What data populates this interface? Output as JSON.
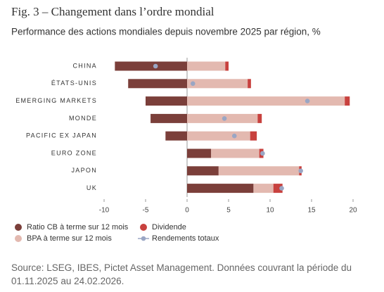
{
  "chart_data": {
    "type": "bar",
    "title": "Fig. 3 – Changement dans l’ordre mondial",
    "subtitle": "Performance des actions mondiales depuis novembre 2025 par région, %",
    "categories": [
      "CHINA",
      "ÉTATS-UNIS",
      "EMERGING MARKETS",
      "MONDE",
      "PACIFIC EX JAPAN",
      "EURO ZONE",
      "JAPON",
      "UK"
    ],
    "series": [
      {
        "name": "Ratio CB à terme sur 12 mois",
        "color": "#7b3f3a",
        "values": [
          -8.7,
          -7.1,
          -5.0,
          -4.4,
          -2.6,
          2.9,
          3.8,
          8.0
        ]
      },
      {
        "name": "BPA à terme sur 12 mois",
        "color": "#e3b9b0",
        "values": [
          4.6,
          7.3,
          19.0,
          8.5,
          7.6,
          5.8,
          9.7,
          2.4
        ]
      },
      {
        "name": "Dividende",
        "color": "#c8413e",
        "values": [
          0.4,
          0.4,
          0.6,
          0.5,
          0.8,
          0.5,
          0.3,
          1.1
        ]
      }
    ],
    "markers": {
      "name": "Rendements totaux",
      "color": "#9aa6c4",
      "values": [
        -3.8,
        0.7,
        14.5,
        4.5,
        5.7,
        9.1,
        13.7,
        11.4
      ]
    },
    "xlim": [
      -10,
      20
    ],
    "xticks": [
      -10,
      -5,
      0,
      5,
      10,
      15,
      20
    ],
    "source": "Source: LSEG, IBES, Pictet Asset Management. Données couvrant la période du 01.11.2025 au 24.02.2026."
  }
}
